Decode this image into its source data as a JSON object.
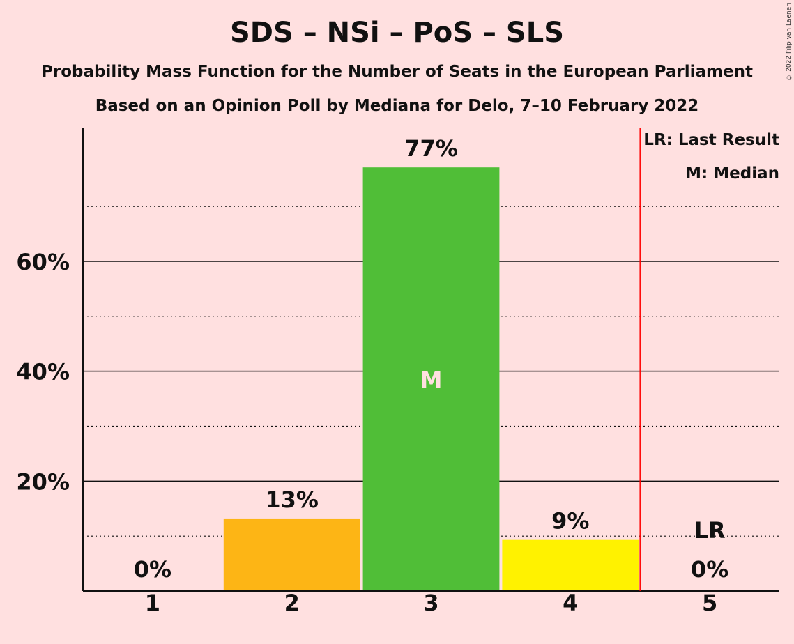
{
  "title": "SDS – NSi – PoS – SLS",
  "subtitle": "Probability Mass Function for the Number of Seats in the European Parliament",
  "subtitle2": "Based on an Opinion Poll by Mediana for Delo, 7–10 February 2022",
  "copyright": "© 2022 Filip van Laenen",
  "legend": {
    "last_result": "LR: Last Result",
    "median": "M: Median"
  },
  "colors": {
    "background": "#FFE0E0",
    "last_result_line": "#FF0000"
  },
  "chart_data": {
    "type": "bar",
    "categories": [
      "1",
      "2",
      "3",
      "4",
      "5"
    ],
    "values": [
      0,
      13.2,
      77.1,
      9.3,
      0
    ],
    "value_labels": [
      "0%",
      "13%",
      "77%",
      "9%",
      "0%"
    ],
    "bar_colors": [
      "#FDB515",
      "#FDB515",
      "#50BE37",
      "#FFF200",
      "#FDB515"
    ],
    "ylim": [
      0,
      84
    ],
    "yticks": [
      20,
      40,
      60
    ],
    "ytick_labels": [
      "20%",
      "40%",
      "60%"
    ],
    "minor_gridlines": [
      10,
      30,
      50,
      70
    ],
    "median_category": "3",
    "median_marker": "M",
    "last_result_category": "5",
    "last_result_marker": "LR",
    "grid": true,
    "legend_position": "top-right"
  }
}
